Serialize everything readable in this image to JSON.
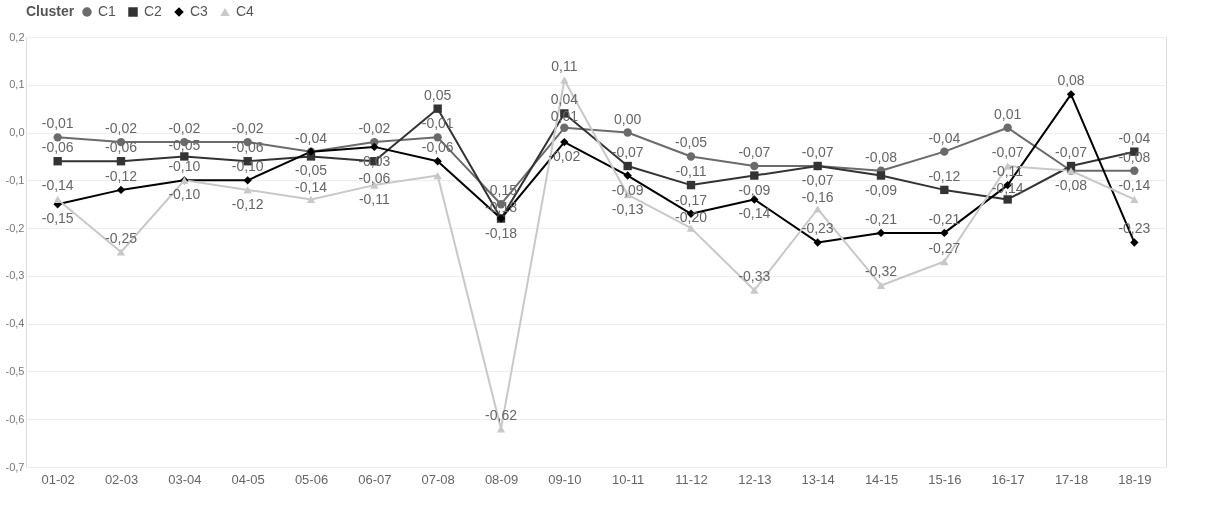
{
  "chart_data": {
    "type": "line",
    "legend_title": "Cluster",
    "legend": "top",
    "grid": "y",
    "categories": [
      "01-02",
      "02-03",
      "03-04",
      "04-05",
      "05-06",
      "06-07",
      "07-08",
      "08-09",
      "09-10",
      "10-11",
      "11-12",
      "12-13",
      "13-14",
      "14-15",
      "15-16",
      "16-17",
      "17-18",
      "18-19"
    ],
    "ylim": [
      -0.7,
      0.2
    ],
    "yticks": [
      {
        "value": -0.7,
        "label": "-0,7"
      },
      {
        "value": -0.6,
        "label": "-0,6"
      },
      {
        "value": -0.5,
        "label": "-0,5"
      },
      {
        "value": -0.4,
        "label": "-0,4"
      },
      {
        "value": -0.3,
        "label": "-0,3"
      },
      {
        "value": -0.2,
        "label": "-0,2"
      },
      {
        "value": -0.1,
        "label": "-0,1"
      },
      {
        "value": 0,
        "label": "0,0"
      },
      {
        "value": 0.1,
        "label": "0,1"
      },
      {
        "value": 0.2,
        "label": "0,2"
      }
    ],
    "series": [
      {
        "name": "C1",
        "color": "#6b6b6b",
        "marker": "circle",
        "values": [
          -0.01,
          -0.02,
          -0.02,
          -0.02,
          -0.04,
          -0.02,
          -0.01,
          -0.15,
          0.01,
          0.0,
          -0.05,
          -0.07,
          -0.07,
          -0.08,
          -0.04,
          0.01,
          -0.08,
          -0.08
        ],
        "value_labels": [
          "-0,01",
          "-0,02",
          "-0,02",
          "-0,02",
          null,
          "-0,02",
          "-0,01",
          "-0,15",
          "0,01",
          "0,00",
          "-0,05",
          "-0,07",
          "-0,07",
          "-0,08",
          "-0,04",
          "0,01",
          null,
          "-0,08"
        ]
      },
      {
        "name": "C2",
        "color": "#333333",
        "marker": "square",
        "values": [
          -0.06,
          -0.06,
          -0.05,
          -0.06,
          -0.05,
          -0.06,
          0.05,
          -0.18,
          0.04,
          -0.07,
          -0.11,
          -0.09,
          -0.07,
          -0.09,
          -0.12,
          -0.14,
          -0.07,
          -0.04
        ],
        "value_labels": [
          "-0,06",
          "-0,06",
          "-0,05",
          "-0,06",
          "-0,05",
          "-0,06",
          "0,05",
          "-0,18",
          "0,04",
          "-0,07",
          "-0,11",
          "-0,09",
          "-0,07",
          "-0,09",
          "-0,12",
          "-0,14",
          "-0,07",
          "-0,04"
        ]
      },
      {
        "name": "C3",
        "color": "#000000",
        "marker": "diamond",
        "values": [
          -0.15,
          -0.12,
          -0.1,
          -0.1,
          -0.04,
          -0.03,
          -0.06,
          -0.18,
          -0.02,
          -0.09,
          -0.17,
          -0.14,
          -0.23,
          -0.21,
          -0.21,
          -0.11,
          0.08,
          -0.23
        ],
        "value_labels": [
          "-0,15",
          "-0,12",
          "-0,10",
          "-0,10",
          "-0,04",
          "-0,03",
          "-0,06",
          "-0,18",
          "-0,02",
          "-0,09",
          "-0,17",
          "-0,14",
          "-0,23",
          "-0,21",
          "-0,21",
          "-0,11",
          "0,08",
          "-0,23"
        ]
      },
      {
        "name": "C4",
        "color": "#c8c8c8",
        "marker": "triangle",
        "values": [
          -0.14,
          -0.25,
          -0.1,
          -0.12,
          -0.14,
          -0.11,
          -0.09,
          -0.62,
          0.11,
          -0.13,
          -0.2,
          -0.33,
          -0.16,
          -0.32,
          -0.27,
          -0.07,
          -0.08,
          -0.14
        ],
        "value_labels": [
          "-0,14",
          "-0,25",
          "-0,10",
          "-0,12",
          "-0,14",
          "-0,11",
          null,
          "-0,62",
          "0,11",
          "-0,13",
          "-0,20",
          "-0,33",
          "-0,16",
          "-0,32",
          "-0,27",
          "-0,07",
          "-0,08",
          "-0,14"
        ]
      }
    ]
  }
}
